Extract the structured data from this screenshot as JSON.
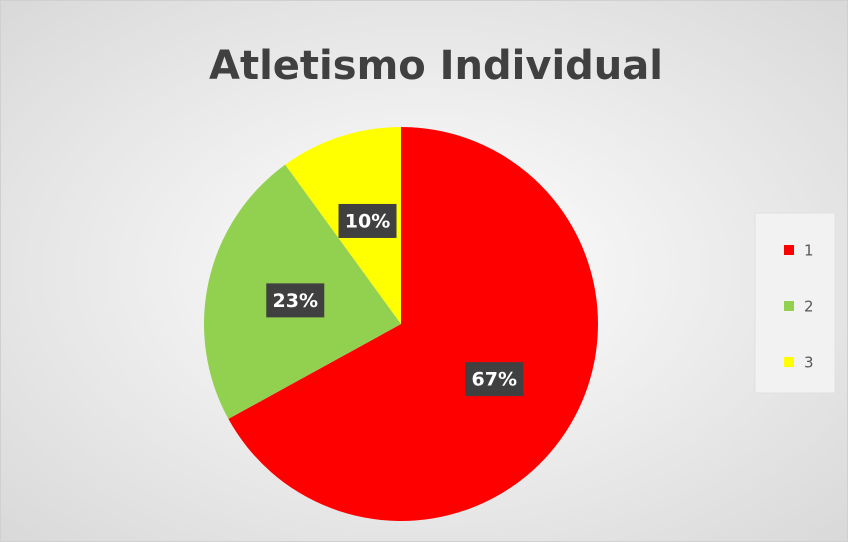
{
  "chart_data": {
    "type": "pie",
    "title": "Atletismo Individual",
    "categories": [
      "1",
      "2",
      "3"
    ],
    "values": [
      67,
      23,
      10
    ],
    "value_labels": [
      "67%",
      "23%",
      "10%"
    ],
    "colors": [
      "#ff0000",
      "#92d050",
      "#ffff00"
    ],
    "legend": "right"
  }
}
